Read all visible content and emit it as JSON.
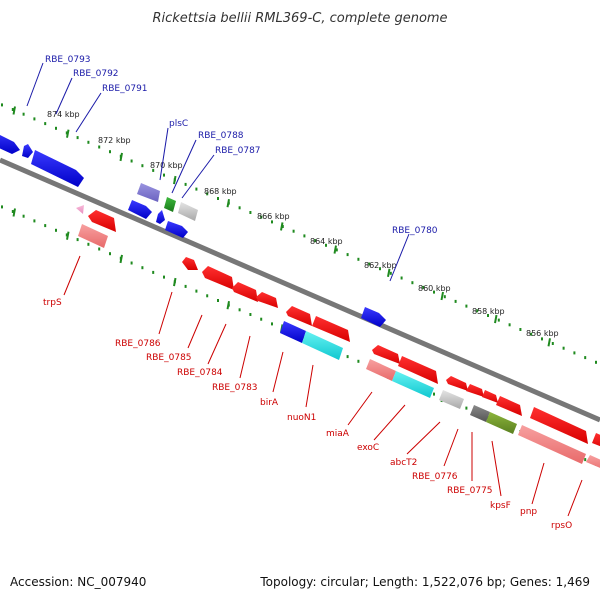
{
  "title": "Rickettsia bellii RML369-C, complete genome",
  "footer": {
    "accession": "Accession: NC_007940",
    "summary": "Topology: circular; Length: 1,522,076 bp; Genes: 1,469"
  },
  "colors": {
    "plus_label": "#1a1aa8",
    "minus_label": "#cc0000",
    "dots": "#1f8a1f",
    "backbone": "#777777"
  },
  "scale_labels": [
    "874 kbp",
    "872 kbp",
    "870 kbp",
    "868 kbp",
    "866 kbp",
    "864 kbp",
    "862 kbp",
    "860 kbp",
    "858 kbp",
    "856 kbp"
  ],
  "plus_labels": [
    "RBE_0793",
    "RBE_0792",
    "RBE_0791",
    "plsC",
    "RBE_0788",
    "RBE_0787",
    "RBE_0780"
  ],
  "minus_labels": [
    "trpS",
    "RBE_0786",
    "RBE_0785",
    "RBE_0784",
    "RBE_0783",
    "birA",
    "nuoN1",
    "miaA",
    "exoC",
    "abcT2",
    "RBE_0776",
    "RBE_0775",
    "kpsF",
    "pnp",
    "rpsO"
  ]
}
